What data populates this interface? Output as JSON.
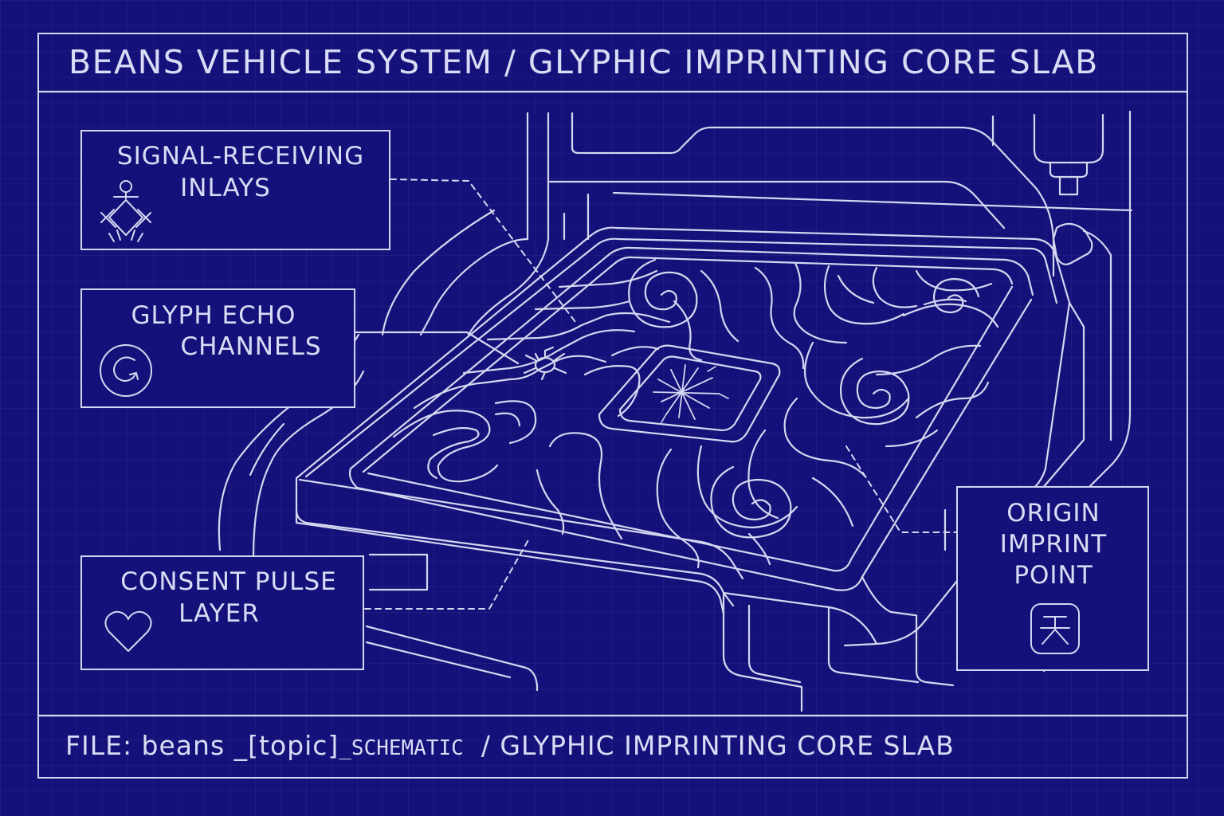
{
  "header": {
    "title": "BEANS VEHICLE SYSTEM / GLYPHIC IMPRINTING CORE SLAB"
  },
  "callouts": [
    {
      "id": "signal",
      "line1": "SIGNAL-RECEIVING",
      "line2": "INLAYS",
      "icon": "signal-glyph-icon"
    },
    {
      "id": "echo",
      "line1": "GLYPH ECHO",
      "line2": "CHANNELS",
      "icon": "circular-arrow-icon"
    },
    {
      "id": "consent",
      "line1": "CONSENT PULSE",
      "line2": "LAYER",
      "icon": "heart-icon"
    },
    {
      "id": "origin",
      "line1": "ORIGIN",
      "line2": "IMPRINT",
      "line3": "POINT",
      "icon": "origin-glyph-icon"
    }
  ],
  "footer": {
    "file_prefix": "FILE: beans _[topic]",
    "file_suffix": "_SCHEMATIC",
    "subtitle": "/ GLYPHIC IMPRINTING CORE SLAB"
  },
  "colors": {
    "background": "#15117a",
    "line": "#d4d7f0",
    "text": "#d9dcf5"
  }
}
